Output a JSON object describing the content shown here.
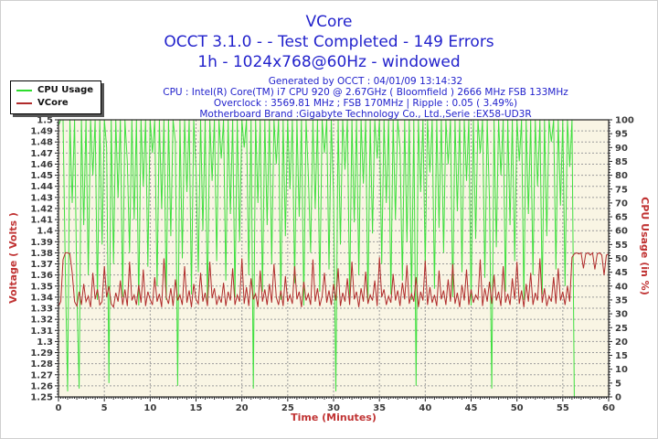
{
  "title": {
    "line1": "VCore",
    "line2": "OCCT 3.1.0 -  - Test Completed - 149 Errors",
    "line3": "1h - 1024x768@60Hz - windowed"
  },
  "info": {
    "line1": "Generated by OCCT : 04/01/09 13:14:32",
    "line2": "CPU : Intel(R) Core(TM) i7 CPU 920 @ 2.67GHz ( Bloomfield ) 2666 MHz FSB 133MHz",
    "line3": "Overclock : 3569.81 MHz ; FSB 170MHz | Ripple : 0.05 ( 3.49%)",
    "line4": "Motherboard Brand :Gigabyte Technology Co., Ltd.,Serie :EX58-UD3R"
  },
  "legend": {
    "items": [
      {
        "label": "CPU Usage",
        "color": "#2ddd2d"
      },
      {
        "label": "VCore",
        "color": "#b02b2b"
      }
    ]
  },
  "colors": {
    "title_blue": "#2222cc",
    "axis_red": "#c03333",
    "tick_text": "#3b3b3b",
    "plot_bg": "#f9f5e4",
    "grid": "#9c9c9c",
    "frame": "#222222",
    "cpu_green": "#3fdf3f",
    "vcore_red": "#b02b2b"
  },
  "chart_data": {
    "type": "line",
    "title": "VCore",
    "xlabel": "Time (Minutes)",
    "ylabel_left": "Voltage ( Volts )",
    "ylabel_right": "CPU Usage (in %)",
    "grid": "dashed",
    "legend_position": "top-left",
    "x_range": [
      0,
      60
    ],
    "y_left_range": [
      1.25,
      1.5
    ],
    "y_right_range": [
      0,
      100
    ],
    "x_ticks": [
      "0",
      "5",
      "10",
      "15",
      "20",
      "25",
      "30",
      "35",
      "40",
      "45",
      "50",
      "55",
      "60"
    ],
    "y_left_ticks": [
      "1.5",
      "1.49",
      "1.48",
      "1.47",
      "1.46",
      "1.45",
      "1.44",
      "1.43",
      "1.42",
      "1.41",
      "1.4",
      "1.39",
      "1.38",
      "1.37",
      "1.36",
      "1.35",
      "1.34",
      "1.33",
      "1.32",
      "1.31",
      "1.3",
      "1.29",
      "1.28",
      "1.27",
      "1.26",
      "1.25"
    ],
    "y_right_ticks": [
      "100",
      "95",
      "90",
      "85",
      "80",
      "75",
      "70",
      "65",
      "60",
      "55",
      "50",
      "45",
      "40",
      "35",
      "30",
      "25",
      "20",
      "15",
      "10",
      "5",
      "0"
    ],
    "x_start": 0,
    "x_step": 0.25,
    "series": [
      {
        "name": "CPU Usage",
        "axis": "right",
        "color": "#3fdf3f",
        "values": [
          98,
          100,
          100,
          45,
          2,
          100,
          70,
          100,
          38,
          3,
          100,
          62,
          100,
          44,
          100,
          80,
          100,
          35,
          100,
          55,
          100,
          90,
          5,
          100,
          48,
          100,
          72,
          100,
          36,
          100,
          85,
          52,
          100,
          64,
          100,
          33,
          100,
          76,
          100,
          47,
          100,
          88,
          100,
          40,
          100,
          68,
          100,
          35,
          100,
          58,
          100,
          92,
          4,
          100,
          50,
          100,
          74,
          100,
          37,
          100,
          82,
          45,
          100,
          60,
          100,
          34,
          100,
          78,
          100,
          49,
          100,
          86,
          100,
          42,
          100,
          66,
          100,
          36,
          100,
          56,
          100,
          90,
          100,
          44,
          100,
          3,
          100,
          70,
          100,
          38,
          100,
          62,
          100,
          48,
          100,
          84,
          100,
          35,
          100,
          58,
          100,
          75,
          100,
          41,
          100,
          65,
          100,
          33,
          100,
          80,
          52,
          100,
          68,
          100,
          38,
          100,
          88,
          100,
          46,
          100,
          72,
          2,
          100,
          55,
          100,
          82,
          100,
          36,
          100,
          63,
          100,
          44,
          100,
          77,
          100,
          34,
          100,
          59,
          100,
          86,
          100,
          48,
          100,
          70,
          100,
          37,
          100,
          64,
          100,
          90,
          42,
          100,
          56,
          100,
          35,
          100,
          4,
          100,
          74,
          100,
          47,
          100,
          81,
          100,
          39,
          100,
          61,
          100,
          52,
          100,
          84,
          100,
          36,
          100,
          67,
          100,
          45,
          100,
          78,
          100,
          33,
          100,
          57,
          100,
          88,
          100,
          43,
          100,
          71,
          3,
          100,
          54,
          100,
          80,
          100,
          38,
          100,
          62,
          100,
          49,
          100,
          85,
          100,
          35,
          100,
          66,
          100,
          44,
          100,
          76,
          100,
          37,
          100,
          58,
          100,
          92,
          100,
          46,
          100,
          69,
          100,
          40,
          100,
          83,
          100,
          0,
          0,
          0,
          0,
          0,
          0,
          0,
          0,
          0,
          0,
          0,
          0,
          0,
          0,
          0,
          0
        ]
      },
      {
        "name": "VCore",
        "axis": "left",
        "color": "#b02b2b",
        "values": [
          1.332,
          1.336,
          1.374,
          1.38,
          1.38,
          1.379,
          1.362,
          1.336,
          1.332,
          1.345,
          1.333,
          1.352,
          1.336,
          1.341,
          1.331,
          1.362,
          1.338,
          1.347,
          1.333,
          1.336,
          1.368,
          1.34,
          1.35,
          1.334,
          1.331,
          1.344,
          1.336,
          1.355,
          1.333,
          1.347,
          1.332,
          1.372,
          1.337,
          1.342,
          1.333,
          1.351,
          1.335,
          1.365,
          1.332,
          1.345,
          1.338,
          1.333,
          1.358,
          1.336,
          1.343,
          1.331,
          1.375,
          1.34,
          1.334,
          1.348,
          1.332,
          1.356,
          1.337,
          1.342,
          1.333,
          1.368,
          1.335,
          1.346,
          1.331,
          1.352,
          1.338,
          1.334,
          1.362,
          1.336,
          1.344,
          1.332,
          1.372,
          1.339,
          1.348,
          1.333,
          1.341,
          1.335,
          1.353,
          1.332,
          1.345,
          1.337,
          1.366,
          1.333,
          1.342,
          1.336,
          1.375,
          1.334,
          1.349,
          1.332,
          1.357,
          1.338,
          1.343,
          1.331,
          1.364,
          1.336,
          1.347,
          1.333,
          1.352,
          1.335,
          1.37,
          1.34,
          1.333,
          1.346,
          1.332,
          1.359,
          1.336,
          1.342,
          1.334,
          1.368,
          1.338,
          1.345,
          1.331,
          1.354,
          1.337,
          1.343,
          1.333,
          1.374,
          1.336,
          1.348,
          1.332,
          1.341,
          1.362,
          1.335,
          1.346,
          1.333,
          1.352,
          1.337,
          1.366,
          1.332,
          1.344,
          1.336,
          1.357,
          1.333,
          1.372,
          1.338,
          1.345,
          1.331,
          1.348,
          1.336,
          1.363,
          1.334,
          1.342,
          1.337,
          1.355,
          1.332,
          1.376,
          1.34,
          1.347,
          1.333,
          1.341,
          1.335,
          1.361,
          1.337,
          1.346,
          1.332,
          1.353,
          1.338,
          1.369,
          1.334,
          1.343,
          1.336,
          1.358,
          1.331,
          1.345,
          1.337,
          1.373,
          1.333,
          1.349,
          1.335,
          1.342,
          1.332,
          1.364,
          1.338,
          1.346,
          1.333,
          1.356,
          1.336,
          1.37,
          1.334,
          1.344,
          1.331,
          1.351,
          1.337,
          1.365,
          1.333,
          1.347,
          1.335,
          1.342,
          1.338,
          1.374,
          1.332,
          1.348,
          1.336,
          1.354,
          1.334,
          1.36,
          1.337,
          1.345,
          1.332,
          1.368,
          1.335,
          1.343,
          1.333,
          1.357,
          1.338,
          1.372,
          1.334,
          1.346,
          1.331,
          1.352,
          1.336,
          1.362,
          1.333,
          1.344,
          1.337,
          1.375,
          1.335,
          1.348,
          1.332,
          1.341,
          1.336,
          1.358,
          1.334,
          1.366,
          1.337,
          1.345,
          1.333,
          1.35,
          1.336,
          1.376,
          1.379,
          1.38,
          1.379,
          1.38,
          1.366,
          1.379,
          1.38,
          1.378,
          1.38,
          1.365,
          1.379,
          1.38,
          1.378,
          1.36,
          1.378,
          1.379
        ]
      }
    ]
  }
}
